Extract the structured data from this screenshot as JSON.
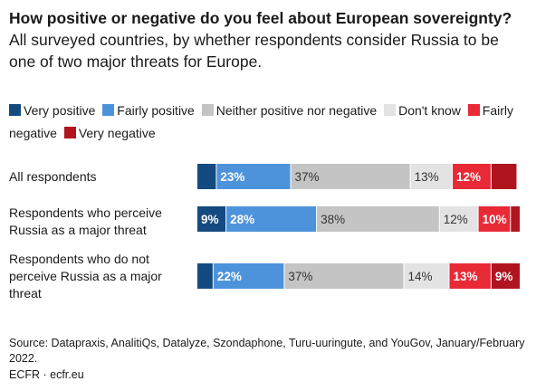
{
  "title": {
    "bold": "How positive or negative do you feel about European sovereignty?",
    "rest": " All surveyed countries, by whether respondents consider Russia to be one of two major threats for Europe."
  },
  "legend": [
    {
      "label": "Very positive",
      "color": "#144a7f"
    },
    {
      "label": "Fairly positive",
      "color": "#4d93dc"
    },
    {
      "label": "Neither positive nor negative",
      "color": "#c4c4c4"
    },
    {
      "label": "Don't know",
      "color": "#e3e3e3"
    },
    {
      "label": "Fairly negative",
      "color": "#e82a36"
    },
    {
      "label": "Very negative",
      "color": "#b0141f"
    }
  ],
  "chart_data": {
    "type": "bar",
    "orientation": "horizontal",
    "stacked": true,
    "unit": "%",
    "xlim": [
      0,
      100
    ],
    "categories": [
      "All respondents",
      "Respondents who perceive Russia as a major threat",
      "Respondents who do not perceive Russia as a major threat"
    ],
    "series": [
      {
        "name": "Very positive",
        "values": [
          6,
          9,
          5
        ],
        "labels": [
          "",
          "9%",
          ""
        ],
        "color": "#144a7f",
        "label_color": "#ffffff"
      },
      {
        "name": "Fairly positive",
        "values": [
          23,
          28,
          22
        ],
        "labels": [
          "23%",
          "28%",
          "22%"
        ],
        "color": "#4d93dc",
        "label_color": "#ffffff"
      },
      {
        "name": "Neither positive nor negative",
        "values": [
          37,
          38,
          37
        ],
        "labels": [
          "37%",
          "38%",
          "37%"
        ],
        "color": "#c4c4c4",
        "label_color": "#333333"
      },
      {
        "name": "Don't know",
        "values": [
          13,
          12,
          14
        ],
        "labels": [
          "13%",
          "12%",
          "14%"
        ],
        "color": "#e3e3e3",
        "label_color": "#333333"
      },
      {
        "name": "Fairly negative",
        "values": [
          12,
          10,
          13
        ],
        "labels": [
          "12%",
          "10%",
          "13%"
        ],
        "color": "#e82a36",
        "label_color": "#ffffff"
      },
      {
        "name": "Very negative",
        "values": [
          8,
          3,
          9
        ],
        "labels": [
          "",
          "",
          "9%"
        ],
        "color": "#b0141f",
        "label_color": "#ffffff"
      }
    ]
  },
  "footer": {
    "source": "Source: Datapraxis, AnalitiQs, Datalyze, Szondaphone, Turu-uuringute, and YouGov, January/February 2022.",
    "credit": "ECFR · ecfr.eu"
  }
}
